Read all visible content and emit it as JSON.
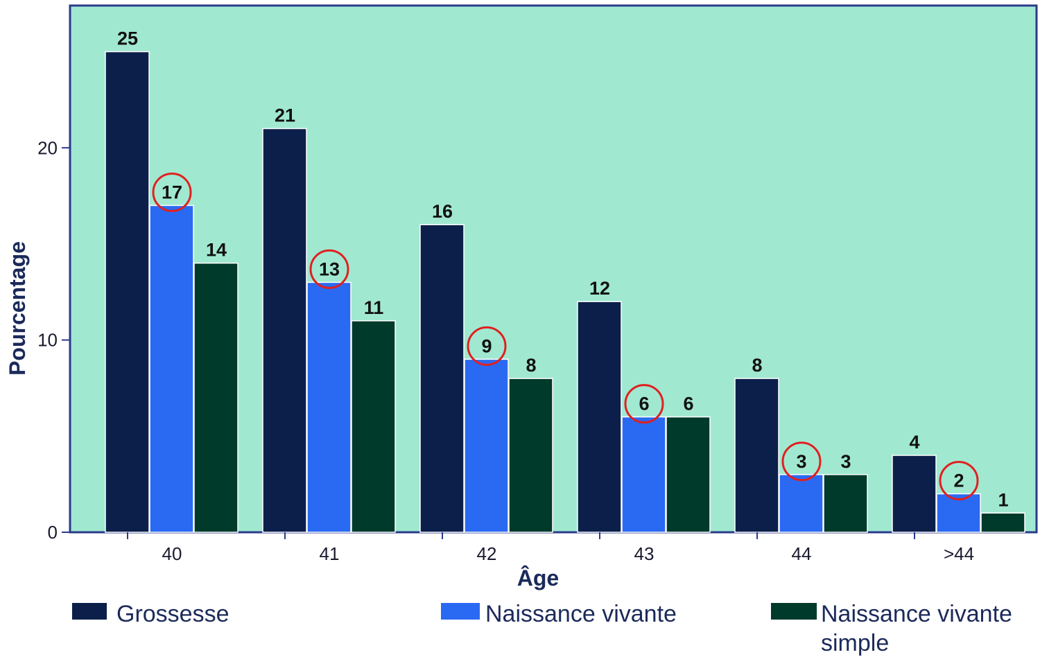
{
  "chart_data": {
    "type": "bar",
    "title": "",
    "xlabel": "Âge",
    "ylabel": "Pourcentage",
    "categories": [
      "40",
      "41",
      "42",
      "43",
      "44",
      ">44"
    ],
    "series": [
      {
        "name": "Grossesse",
        "color": "#0b1f4a",
        "values": [
          25,
          21,
          16,
          12,
          8,
          4
        ]
      },
      {
        "name": "Naissance vivante",
        "color": "#2a6af2",
        "values": [
          17,
          13,
          9,
          6,
          3,
          2
        ],
        "circled": true
      },
      {
        "name": "Naissance vivante simple",
        "color": "#003a2a",
        "values": [
          14,
          11,
          8,
          6,
          3,
          1
        ]
      }
    ],
    "ylim": [
      0,
      27.4
    ],
    "yticks": [
      0,
      10,
      20
    ],
    "grid": false,
    "legend_position": "bottom",
    "background_color": "#a1e8d1",
    "highlight_color": "#e02020"
  }
}
